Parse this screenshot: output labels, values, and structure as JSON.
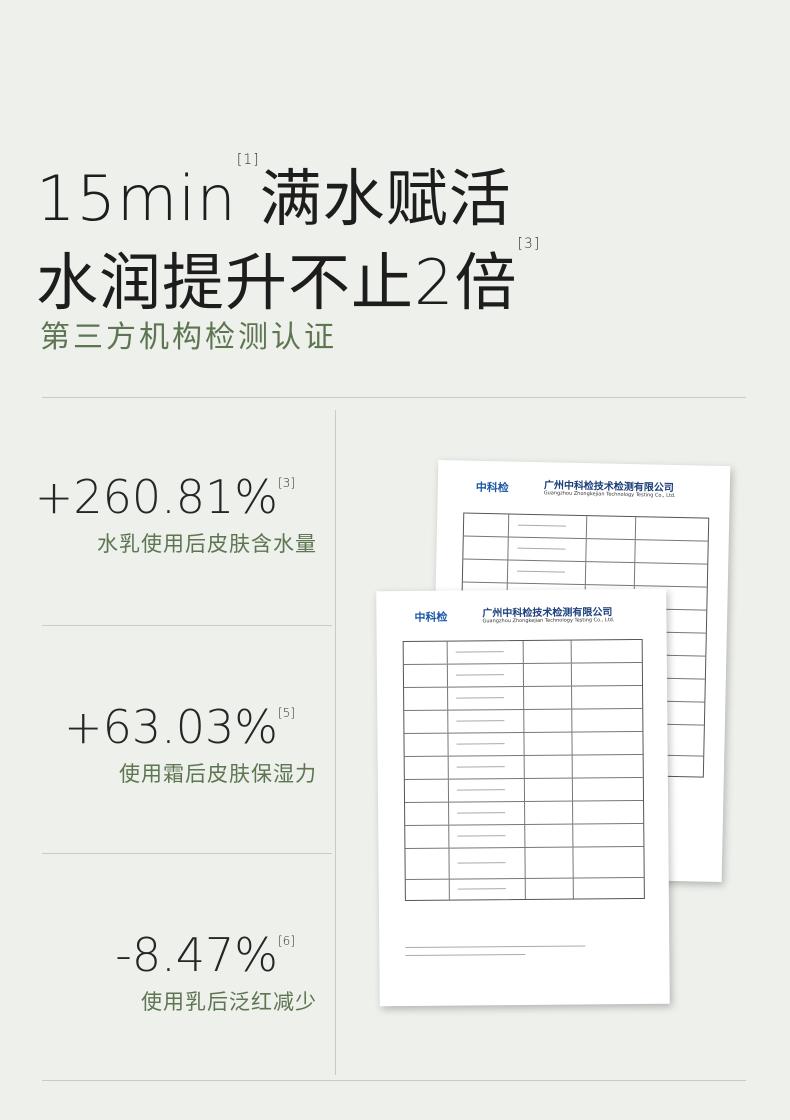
{
  "headline": {
    "line1": {
      "text": "15min",
      "note": "[1]",
      "text2": "满水赋活"
    },
    "line2": {
      "text": "水润提升不止2倍",
      "note": "[3]"
    },
    "subtitle": "第三方机构检测认证"
  },
  "stats": [
    {
      "value": "+260.81%",
      "note": "[3]",
      "label": "水乳使用后皮肤含水量"
    },
    {
      "value": "+63.03%",
      "note": "[5]",
      "label": "使用霜后皮肤保湿力"
    },
    {
      "value": "-8.47%",
      "note": "[6]",
      "label": "使用乳后泛红减少"
    }
  ],
  "report": {
    "logo": "中科检",
    "company": "广州中科检技术检测有限公司",
    "company_en": "Guangzhou Zhongkejian Technology Testing Co., Ltd."
  }
}
